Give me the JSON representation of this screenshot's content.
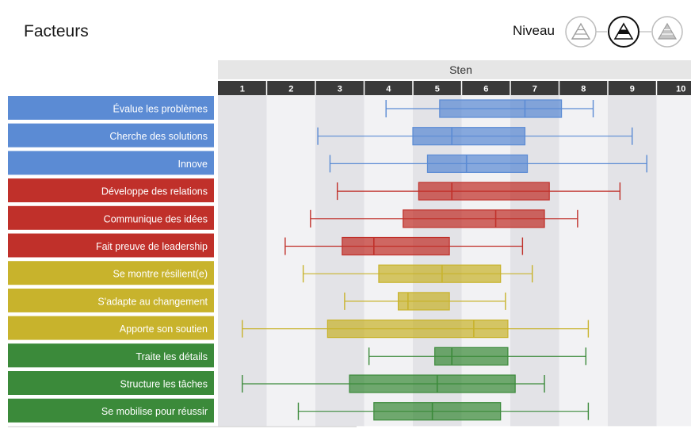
{
  "header": {
    "title": "Facteurs",
    "level_label": "Niveau",
    "level_icons": [
      "level-low-icon",
      "level-mid-icon",
      "level-high-icon"
    ],
    "selected_level": 1
  },
  "chart_data": {
    "type": "boxplot",
    "axis_title": "Sten",
    "xlim": [
      0.5,
      10.5
    ],
    "ticks": [
      "1",
      "2",
      "3",
      "4",
      "5",
      "6",
      "7",
      "8",
      "9",
      "10"
    ],
    "colors": {
      "blue": "#5b8bd4",
      "red": "#c0302a",
      "yellow": "#c8b32c",
      "green": "#3b8a3a"
    },
    "factors": [
      {
        "label": "Évalue les problèmes",
        "group": "blue",
        "min": 3.95,
        "q1": 5.05,
        "median": 6.8,
        "q3": 7.55,
        "max": 8.2
      },
      {
        "label": "Cherche des solutions",
        "group": "blue",
        "min": 2.55,
        "q1": 4.5,
        "median": 5.3,
        "q3": 6.8,
        "max": 9.0
      },
      {
        "label": "Innove",
        "group": "blue",
        "min": 2.8,
        "q1": 4.8,
        "median": 5.6,
        "q3": 6.85,
        "max": 9.3
      },
      {
        "label": "Développe des relations",
        "group": "red",
        "min": 2.95,
        "q1": 4.62,
        "median": 5.3,
        "q3": 7.3,
        "max": 8.75
      },
      {
        "label": "Communique des idées",
        "group": "red",
        "min": 2.4,
        "q1": 4.3,
        "median": 6.2,
        "q3": 7.2,
        "max": 7.88
      },
      {
        "label": "Fait preuve de leadership",
        "group": "red",
        "min": 1.88,
        "q1": 3.05,
        "median": 3.7,
        "q3": 5.25,
        "max": 6.75
      },
      {
        "label": "Se montre résilient(e)",
        "group": "yellow",
        "min": 2.25,
        "q1": 3.8,
        "median": 5.1,
        "q3": 6.3,
        "max": 6.95
      },
      {
        "label": "S'adapte au changement",
        "group": "yellow",
        "min": 3.1,
        "q1": 4.2,
        "median": 4.4,
        "q3": 5.25,
        "max": 6.4
      },
      {
        "label": "Apporte son soutien",
        "group": "yellow",
        "min": 1.0,
        "q1": 2.75,
        "median": 5.75,
        "q3": 6.45,
        "max": 8.1
      },
      {
        "label": "Traite les détails",
        "group": "green",
        "min": 3.6,
        "q1": 4.95,
        "median": 5.3,
        "q3": 6.45,
        "max": 8.05
      },
      {
        "label": "Structure les tâches",
        "group": "green",
        "min": 1.0,
        "q1": 3.2,
        "median": 5.0,
        "q3": 6.6,
        "max": 7.2
      },
      {
        "label": "Se mobilise pour réussir",
        "group": "green",
        "min": 2.15,
        "q1": 3.7,
        "median": 4.9,
        "q3": 6.3,
        "max": 8.1
      }
    ]
  }
}
